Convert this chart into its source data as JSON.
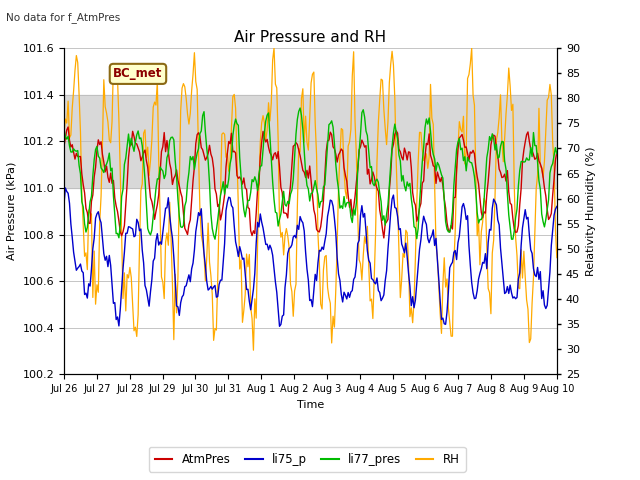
{
  "title": "Air Pressure and RH",
  "subtitle": "No data for f_AtmPres",
  "xlabel": "Time",
  "ylabel_left": "Air Pressure (kPa)",
  "ylabel_right": "Relativity Humidity (%)",
  "annotation": "BC_met",
  "ylim_left": [
    100.2,
    101.6
  ],
  "ylim_right": [
    25,
    90
  ],
  "yticks_left": [
    100.2,
    100.4,
    100.6,
    100.8,
    101.0,
    101.2,
    101.4,
    101.6
  ],
  "yticks_right": [
    25,
    30,
    35,
    40,
    45,
    50,
    55,
    60,
    65,
    70,
    75,
    80,
    85,
    90
  ],
  "xtick_labels": [
    "Jul 26",
    "Jul 27",
    "Jul 28",
    "Jul 29",
    "Jul 30",
    "Jul 31",
    "Aug 1",
    "Aug 2",
    "Aug 3",
    "Aug 4",
    "Aug 5",
    "Aug 6",
    "Aug 7",
    "Aug 8",
    "Aug 9",
    "Aug 10"
  ],
  "colors": {
    "AtmPres": "#cc0000",
    "li75_p": "#0000cc",
    "li77_pres": "#00bb00",
    "RH": "#ffaa00"
  },
  "legend_labels": [
    "AtmPres",
    "li75_p",
    "li77_pres",
    "RH"
  ],
  "shaded_band": [
    101.0,
    101.4
  ],
  "background_color": "#ffffff",
  "grid_color": "#bbbbbb",
  "n_points": 360,
  "seed": 42
}
